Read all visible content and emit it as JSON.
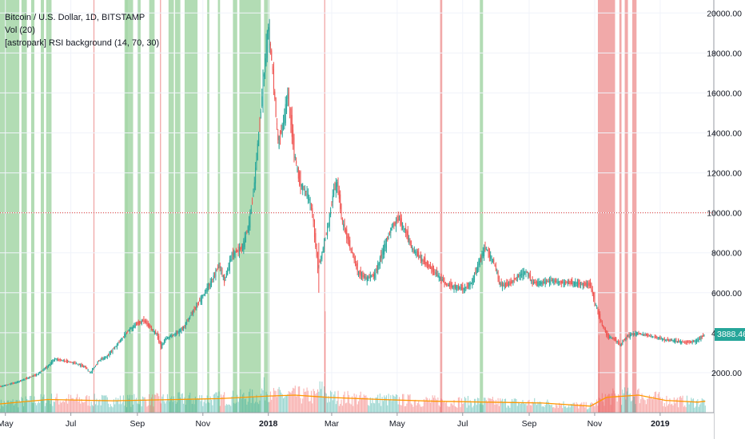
{
  "legend": {
    "symbol": "Bitcoin / U.S. Dollar, 1D, BITSTAMP",
    "volume": "Vol (20)",
    "indicator": "[astropark] RSI background (14, 70, 30)"
  },
  "colors": {
    "up": "#26a69a",
    "down": "#ef5350",
    "rsi_overbought": "#a5d6a7",
    "rsi_oversold": "#ef9a9a",
    "volume_ma": "#ff9800",
    "grid": "#f0f3fa",
    "crosshair": "#e53935"
  },
  "last_price": {
    "label": "3888.46",
    "value": 3888.46
  },
  "chart_data": {
    "type": "line",
    "x_axis": {
      "ticks": [
        {
          "t": 0,
          "label": "May"
        },
        {
          "t": 61,
          "label": "Jul"
        },
        {
          "t": 123,
          "label": "Sep"
        },
        {
          "t": 184,
          "label": "Nov"
        },
        {
          "t": 245,
          "label": "2018"
        },
        {
          "t": 304,
          "label": "Mar"
        },
        {
          "t": 365,
          "label": "May"
        },
        {
          "t": 426,
          "label": "Jul"
        },
        {
          "t": 488,
          "label": "Sep"
        },
        {
          "t": 549,
          "label": "Nov"
        },
        {
          "t": 610,
          "label": "2019"
        }
      ],
      "t_range": [
        -5,
        660
      ]
    },
    "y_axis": {
      "ticks": [
        "20000.00",
        "18000.00",
        "16000.00",
        "14000.00",
        "12000.00",
        "10000.00",
        "8000.00",
        "6000.00",
        "4000.00",
        "2000.00"
      ],
      "tick_values": [
        20000,
        18000,
        16000,
        14000,
        12000,
        10000,
        8000,
        6000,
        4000,
        2000
      ],
      "ylim": [
        0,
        20650
      ]
    },
    "crosshair_y": 10000,
    "price_series": {
      "name": "BTCUSD",
      "points": [
        [
          -5,
          1300
        ],
        [
          10,
          1500
        ],
        [
          20,
          1700
        ],
        [
          30,
          1900
        ],
        [
          40,
          2300
        ],
        [
          47,
          2700
        ],
        [
          55,
          2600
        ],
        [
          65,
          2500
        ],
        [
          75,
          2300
        ],
        [
          80,
          2000
        ],
        [
          88,
          2600
        ],
        [
          95,
          2800
        ],
        [
          105,
          3400
        ],
        [
          115,
          4100
        ],
        [
          125,
          4500
        ],
        [
          130,
          4600
        ],
        [
          137,
          4200
        ],
        [
          142,
          3900
        ],
        [
          146,
          3300
        ],
        [
          150,
          3700
        ],
        [
          158,
          3900
        ],
        [
          166,
          4200
        ],
        [
          175,
          5000
        ],
        [
          184,
          5800
        ],
        [
          192,
          6500
        ],
        [
          200,
          7400
        ],
        [
          205,
          6600
        ],
        [
          212,
          7900
        ],
        [
          222,
          8300
        ],
        [
          228,
          9500
        ],
        [
          232,
          11000
        ],
        [
          237,
          14000
        ],
        [
          241,
          16500
        ],
        [
          244,
          18300
        ],
        [
          246,
          19400
        ],
        [
          250,
          17000
        ],
        [
          255,
          13500
        ],
        [
          260,
          14500
        ],
        [
          264,
          16000
        ],
        [
          270,
          13000
        ],
        [
          275,
          11500
        ],
        [
          282,
          11000
        ],
        [
          287,
          10000
        ],
        [
          292,
          7200
        ],
        [
          296,
          8000
        ],
        [
          302,
          9500
        ],
        [
          307,
          11200
        ],
        [
          310,
          11500
        ],
        [
          315,
          9500
        ],
        [
          322,
          8300
        ],
        [
          330,
          7000
        ],
        [
          338,
          6700
        ],
        [
          345,
          6900
        ],
        [
          352,
          8000
        ],
        [
          360,
          9200
        ],
        [
          367,
          9700
        ],
        [
          372,
          9300
        ],
        [
          380,
          8200
        ],
        [
          388,
          7700
        ],
        [
          396,
          7300
        ],
        [
          405,
          6800
        ],
        [
          412,
          6400
        ],
        [
          420,
          6300
        ],
        [
          428,
          6200
        ],
        [
          435,
          6500
        ],
        [
          442,
          7500
        ],
        [
          448,
          8300
        ],
        [
          456,
          7500
        ],
        [
          462,
          6400
        ],
        [
          470,
          6400
        ],
        [
          478,
          6800
        ],
        [
          486,
          7100
        ],
        [
          492,
          6500
        ],
        [
          500,
          6500
        ],
        [
          510,
          6600
        ],
        [
          520,
          6500
        ],
        [
          530,
          6500
        ],
        [
          542,
          6400
        ],
        [
          546,
          6400
        ],
        [
          550,
          5500
        ],
        [
          556,
          4500
        ],
        [
          562,
          3800
        ],
        [
          568,
          3700
        ],
        [
          574,
          3400
        ],
        [
          580,
          3800
        ],
        [
          588,
          4000
        ],
        [
          596,
          3900
        ],
        [
          605,
          3800
        ],
        [
          615,
          3650
        ],
        [
          625,
          3600
        ],
        [
          635,
          3500
        ],
        [
          645,
          3600
        ],
        [
          652,
          3888
        ]
      ]
    },
    "volume_ma_series": {
      "name": "Vol MA",
      "points": [
        [
          -5,
          0.2
        ],
        [
          40,
          0.3
        ],
        [
          100,
          0.27
        ],
        [
          160,
          0.3
        ],
        [
          200,
          0.32
        ],
        [
          246,
          0.38
        ],
        [
          270,
          0.4
        ],
        [
          300,
          0.35
        ],
        [
          350,
          0.3
        ],
        [
          400,
          0.26
        ],
        [
          450,
          0.24
        ],
        [
          500,
          0.22
        ],
        [
          545,
          0.15
        ],
        [
          560,
          0.35
        ],
        [
          590,
          0.4
        ],
        [
          615,
          0.28
        ],
        [
          645,
          0.24
        ],
        [
          652,
          0.26
        ]
      ]
    },
    "rsi_background": {
      "overbought": [
        [
          -5,
          13
        ],
        [
          15,
          20
        ],
        [
          24,
          27
        ],
        [
          33,
          36
        ],
        [
          38,
          40
        ],
        [
          40,
          43
        ],
        [
          111,
          114
        ],
        [
          112,
          119
        ],
        [
          123,
          126
        ],
        [
          134,
          139
        ],
        [
          152,
          157
        ],
        [
          158,
          163
        ],
        [
          167,
          179
        ],
        [
          188,
          190
        ],
        [
          198,
          200
        ],
        [
          212,
          216
        ],
        [
          218,
          238
        ],
        [
          241,
          246
        ],
        [
          442,
          445
        ]
      ],
      "oversold": [
        [
          82,
          83
        ],
        [
          144,
          145
        ],
        [
          297,
          298
        ],
        [
          405,
          407
        ],
        [
          552,
          568
        ],
        [
          572,
          574
        ],
        [
          577,
          580
        ],
        [
          584,
          588
        ]
      ]
    }
  }
}
